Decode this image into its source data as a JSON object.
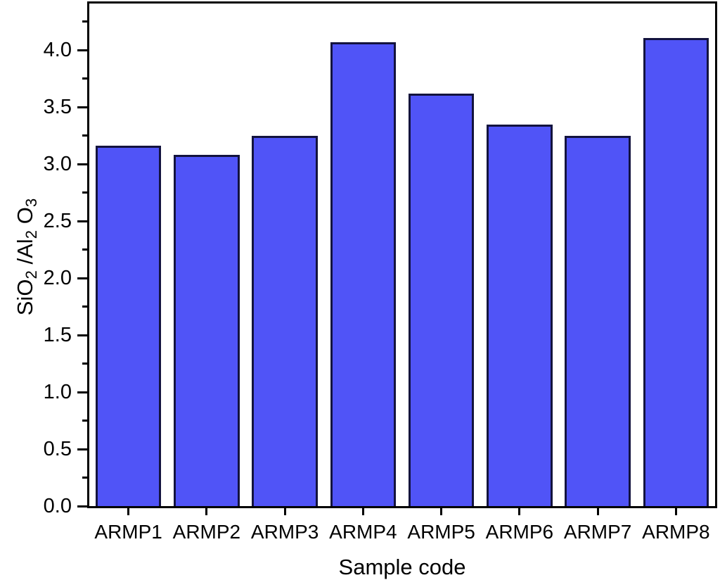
{
  "chart_data": {
    "type": "bar",
    "title": "",
    "xlabel": "Sample code",
    "ylabel": "SiO2/Al2O3",
    "ylabel_rich": [
      {
        "text": "SiO"
      },
      {
        "text": "2",
        "sub": true
      },
      {
        "text": " /Al"
      },
      {
        "text": "2",
        "sub": true
      },
      {
        "text": " O"
      },
      {
        "text": "3",
        "sub": true
      }
    ],
    "categories": [
      "ARMP1",
      "ARMP2",
      "ARMP3",
      "ARMP4",
      "ARMP5",
      "ARMP6",
      "ARMP7",
      "ARMP8"
    ],
    "values": [
      3.16,
      3.08,
      3.25,
      4.07,
      3.62,
      3.35,
      3.25,
      4.11
    ],
    "ylim": [
      0,
      4.41
    ],
    "y_major_ticks": [
      0.0,
      0.5,
      1.0,
      1.5,
      2.0,
      2.5,
      3.0,
      3.5,
      4.0
    ],
    "y_major_tick_labels": [
      "0.0",
      "0.5",
      "1.0",
      "1.5",
      "2.0",
      "2.5",
      "3.0",
      "3.5",
      "4.0"
    ],
    "y_minor_ticks": [
      0.25,
      0.75,
      1.25,
      1.75,
      2.25,
      2.75,
      3.25,
      3.75,
      4.25
    ],
    "grid": false,
    "legend": "none",
    "bar_color": "#5054F7",
    "bar_edge_color": "#13133E",
    "axis_color": "#000000",
    "background_color": "#FFFFFF"
  }
}
